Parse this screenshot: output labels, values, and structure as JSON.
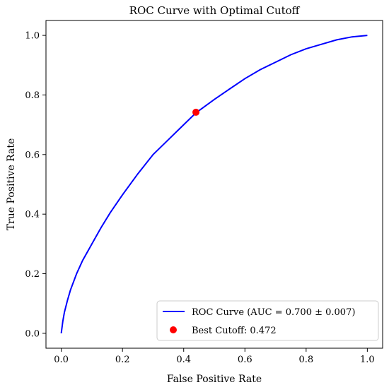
{
  "chart_data": {
    "type": "line",
    "title": "ROC Curve with Optimal Cutoff",
    "xlabel": "False Positive Rate",
    "ylabel": "True Positive Rate",
    "xlim": [
      -0.05,
      1.05
    ],
    "ylim": [
      -0.05,
      1.05
    ],
    "xticks": [
      0.0,
      0.2,
      0.4,
      0.6,
      0.8,
      1.0
    ],
    "yticks": [
      0.0,
      0.2,
      0.4,
      0.6,
      0.8,
      1.0
    ],
    "xtick_labels": [
      "0.0",
      "0.2",
      "0.4",
      "0.6",
      "0.8",
      "1.0"
    ],
    "ytick_labels": [
      "0.0",
      "0.2",
      "0.4",
      "0.6",
      "0.8",
      "1.0"
    ],
    "grid": false,
    "legend_position": "bottom-right",
    "series": [
      {
        "name": "ROC Curve (AUC = 0.700 ± 0.007)",
        "color": "#0000ff",
        "x": [
          0.0,
          0.005,
          0.01,
          0.02,
          0.03,
          0.05,
          0.07,
          0.1,
          0.13,
          0.16,
          0.2,
          0.25,
          0.3,
          0.35,
          0.4,
          0.44,
          0.5,
          0.55,
          0.6,
          0.65,
          0.7,
          0.75,
          0.8,
          0.85,
          0.9,
          0.95,
          1.0
        ],
        "y": [
          0.0,
          0.04,
          0.07,
          0.11,
          0.145,
          0.2,
          0.245,
          0.3,
          0.355,
          0.405,
          0.465,
          0.535,
          0.6,
          0.65,
          0.7,
          0.74,
          0.785,
          0.82,
          0.855,
          0.885,
          0.91,
          0.935,
          0.955,
          0.97,
          0.985,
          0.995,
          1.0
        ]
      }
    ],
    "markers": [
      {
        "name": "Best Cutoff: 0.472",
        "x": 0.44,
        "y": 0.742,
        "color": "#ff0000"
      }
    ]
  }
}
